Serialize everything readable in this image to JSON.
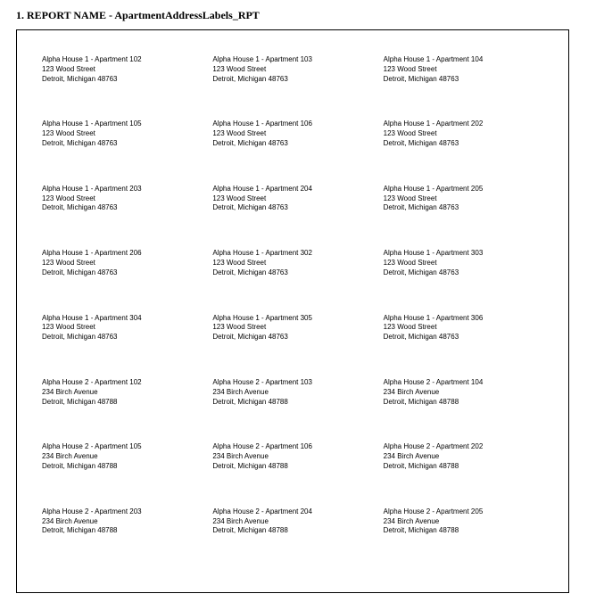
{
  "heading": {
    "number": "1.",
    "text": "REPORT NAME - ApartmentAddressLabels_RPT"
  },
  "labels": [
    {
      "line1": "Alpha House 1 - Apartment 102",
      "line2": "123 Wood Street",
      "line3": "Detroit, Michigan 48763"
    },
    {
      "line1": "Alpha House 1 - Apartment 103",
      "line2": "123 Wood Street",
      "line3": "Detroit, Michigan 48763"
    },
    {
      "line1": "Alpha House 1 - Apartment 104",
      "line2": "123 Wood Street",
      "line3": "Detroit, Michigan 48763"
    },
    {
      "line1": "Alpha House 1 - Apartment 105",
      "line2": "123 Wood Street",
      "line3": "Detroit, Michigan 48763"
    },
    {
      "line1": "Alpha House 1 - Apartment 106",
      "line2": "123 Wood Street",
      "line3": "Detroit, Michigan 48763"
    },
    {
      "line1": "Alpha House 1 - Apartment 202",
      "line2": "123 Wood Street",
      "line3": "Detroit, Michigan 48763"
    },
    {
      "line1": "Alpha House 1 - Apartment 203",
      "line2": "123 Wood Street",
      "line3": "Detroit, Michigan 48763"
    },
    {
      "line1": "Alpha House 1 - Apartment 204",
      "line2": "123 Wood Street",
      "line3": "Detroit, Michigan 48763"
    },
    {
      "line1": "Alpha House 1 - Apartment 205",
      "line2": "123 Wood Street",
      "line3": "Detroit, Michigan 48763"
    },
    {
      "line1": "Alpha House 1 - Apartment 206",
      "line2": "123 Wood Street",
      "line3": "Detroit, Michigan 48763"
    },
    {
      "line1": "Alpha House 1 - Apartment 302",
      "line2": "123 Wood Street",
      "line3": "Detroit, Michigan 48763"
    },
    {
      "line1": "Alpha House 1 - Apartment 303",
      "line2": "123 Wood Street",
      "line3": "Detroit, Michigan 48763"
    },
    {
      "line1": "Alpha House 1 - Apartment 304",
      "line2": "123 Wood Street",
      "line3": "Detroit, Michigan 48763"
    },
    {
      "line1": "Alpha House 1 - Apartment 305",
      "line2": "123 Wood Street",
      "line3": "Detroit, Michigan 48763"
    },
    {
      "line1": "Alpha House 1 - Apartment 306",
      "line2": "123 Wood Street",
      "line3": "Detroit, Michigan 48763"
    },
    {
      "line1": "Alpha House 2 - Apartment 102",
      "line2": "234 Birch Avenue",
      "line3": "Detroit, Michigan 48788"
    },
    {
      "line1": "Alpha House 2 - Apartment 103",
      "line2": "234 Birch Avenue",
      "line3": "Detroit, Michigan 48788"
    },
    {
      "line1": "Alpha House 2 - Apartment 104",
      "line2": "234 Birch Avenue",
      "line3": "Detroit, Michigan 48788"
    },
    {
      "line1": "Alpha House 2 - Apartment 105",
      "line2": "234 Birch Avenue",
      "line3": "Detroit, Michigan 48788"
    },
    {
      "line1": "Alpha House 2 - Apartment 106",
      "line2": "234 Birch Avenue",
      "line3": "Detroit, Michigan 48788"
    },
    {
      "line1": "Alpha House 2 - Apartment 202",
      "line2": "234 Birch Avenue",
      "line3": "Detroit, Michigan 48788"
    },
    {
      "line1": "Alpha House 2 - Apartment 203",
      "line2": "234 Birch Avenue",
      "line3": "Detroit, Michigan 48788"
    },
    {
      "line1": "Alpha House 2 - Apartment 204",
      "line2": "234 Birch Avenue",
      "line3": "Detroit, Michigan 48788"
    },
    {
      "line1": "Alpha House 2 - Apartment 205",
      "line2": "234 Birch Avenue",
      "line3": "Detroit, Michigan 48788"
    }
  ]
}
